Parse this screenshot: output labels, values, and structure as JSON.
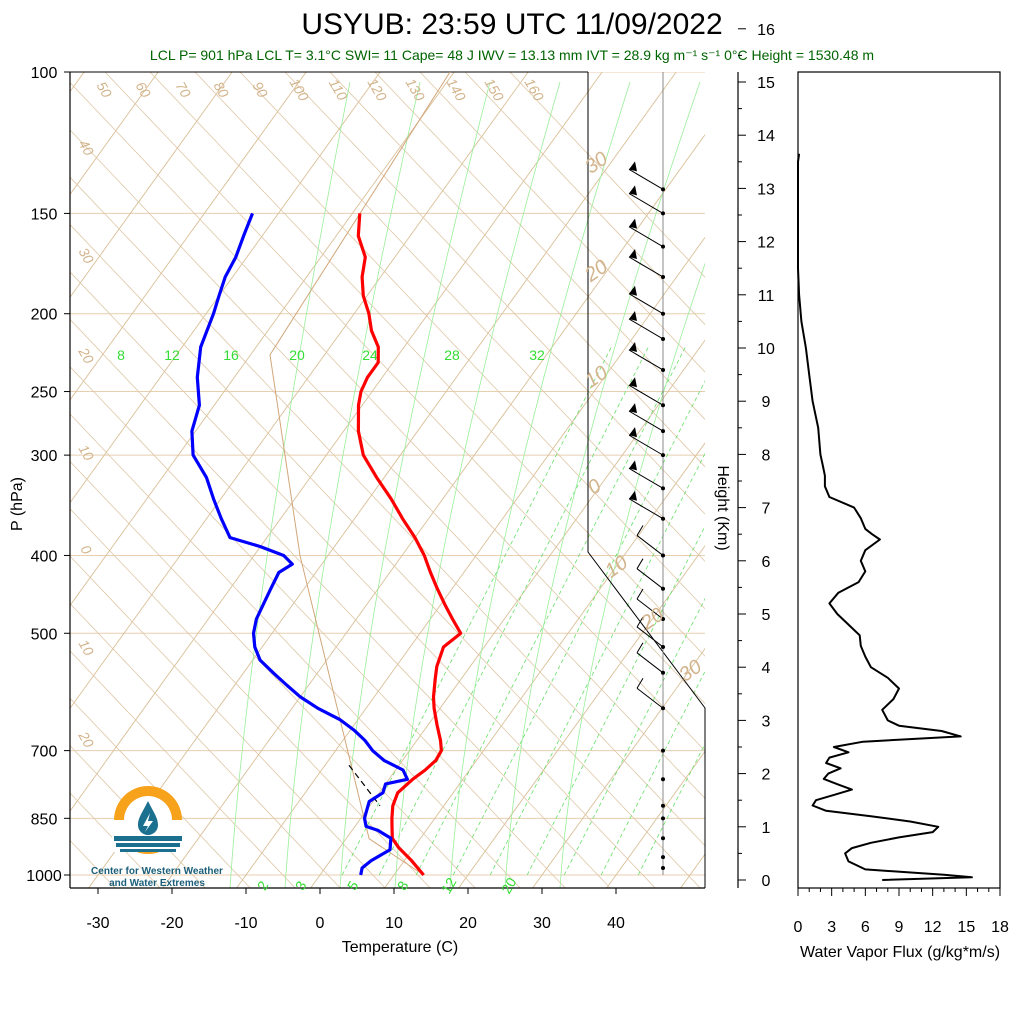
{
  "title": "USYUB: 23:59 UTC 11/09/2022",
  "subtitle": "LCL P= 901 hPa  LCL T= 3.1°C  SWI= 11  Cape= 48 J  IWV = 13.13 mm  IVT = 28.9 kg m⁻¹ s⁻¹  0°C Height = 1530.48 m",
  "logo": {
    "line1": "Center for Western Weather",
    "line2": "and Water Extremes",
    "colors": {
      "sun": "#f7a21b",
      "drop": "#1b6f8f"
    }
  },
  "chart_data": [
    {
      "type": "line",
      "name": "skew-t",
      "xlabel": "Temperature (C)",
      "ylabel": "P (hPa)",
      "xlim": [
        -35,
        50
      ],
      "ylim": [
        1000,
        100
      ],
      "x_ticks": [
        "-30",
        "-20",
        "-10",
        "0",
        "10",
        "20",
        "30",
        "40"
      ],
      "y_ticks": [
        "100",
        "150",
        "200",
        "250",
        "300",
        "400",
        "500",
        "700",
        "850",
        "1000"
      ],
      "isotherm_labels": [
        "50",
        "60",
        "70",
        "80",
        "90",
        "100",
        "110",
        "120",
        "130",
        "140",
        "150",
        "160",
        "40",
        "30",
        "20",
        "10",
        "0",
        "10",
        "20"
      ],
      "mixing_ratio_labels_top": [
        "8",
        "12",
        "16",
        "20",
        "24",
        "28",
        "32"
      ],
      "mixing_ratio_labels_bottom": [
        "2",
        "3",
        "5",
        "8",
        "12",
        "20"
      ],
      "dry_adiabat_labels": [
        "30",
        "20",
        "10",
        "0",
        "10",
        "20",
        "30"
      ],
      "colors": {
        "temperature": "#ff0000",
        "dewpoint": "#0000ff",
        "isotherm": "#d2b48c",
        "mixing": "#33dd33"
      },
      "series": [
        {
          "name": "",
          "color": "#ff0000",
          "p": [
            1000,
            960,
            925,
            900,
            870,
            850,
            820,
            790,
            760,
            740,
            720,
            700,
            680,
            650,
            620,
            600,
            570,
            550,
            520,
            500,
            480,
            460,
            440,
            420,
            400,
            380,
            360,
            340,
            320,
            300,
            280,
            260,
            250,
            240,
            230,
            220,
            210,
            200,
            190,
            180,
            170,
            160,
            150
          ],
          "t": [
            14.0,
            11.0,
            8.0,
            6.2,
            5.0,
            4.2,
            3.1,
            2.5,
            3.2,
            4.0,
            4.5,
            4.3,
            3.2,
            1.2,
            -0.8,
            -2.0,
            -3.5,
            -4.5,
            -5.5,
            -4.5,
            -7.0,
            -9.5,
            -12.0,
            -14.5,
            -17.0,
            -20.0,
            -23.5,
            -27.0,
            -31.0,
            -35.0,
            -38.0,
            -40.5,
            -41.5,
            -42.0,
            -42.0,
            -43.5,
            -46.0,
            -48.0,
            -50.5,
            -52.5,
            -54.0,
            -57.0,
            -59.0
          ]
        },
        {
          "name": "",
          "color": "#0000ff",
          "p": [
            1000,
            980,
            960,
            930,
            900,
            880,
            870,
            850,
            830,
            810,
            790,
            770,
            760,
            740,
            720,
            700,
            680,
            660,
            640,
            620,
            600,
            580,
            560,
            540,
            520,
            500,
            480,
            460,
            440,
            420,
            410,
            400,
            390,
            380,
            360,
            340,
            320,
            300,
            280,
            260,
            240,
            220,
            200,
            190,
            180,
            170,
            160,
            150
          ],
          "t": [
            5.5,
            5.0,
            5.5,
            7.0,
            6.0,
            3.5,
            1.5,
            0.5,
            0.0,
            -0.5,
            0.5,
            0.0,
            2.5,
            1.0,
            -2.5,
            -5.0,
            -7.0,
            -9.5,
            -12.5,
            -16.5,
            -20.0,
            -23.0,
            -26.0,
            -29.0,
            -31.0,
            -32.5,
            -33.5,
            -34.0,
            -34.5,
            -35.0,
            -34.0,
            -36.0,
            -40.0,
            -45.0,
            -48.0,
            -51.0,
            -54.0,
            -58.0,
            -60.5,
            -62.0,
            -65.0,
            -67.5,
            -69.0,
            -70.0,
            -71.0,
            -71.5,
            -72.5,
            -73.5
          ]
        }
      ]
    },
    {
      "type": "line",
      "name": "water-vapor-flux",
      "xlabel": "Water Vapor Flux (g/kg*m/s)",
      "ylabel": "Height (Km)",
      "xlim": [
        0,
        18
      ],
      "ylim": [
        -0.3,
        16.5
      ],
      "x_ticks": [
        "0",
        "3",
        "6",
        "9",
        "12",
        "15",
        "18"
      ],
      "y_ticks": [
        "0",
        "1",
        "2",
        "3",
        "4",
        "5",
        "6",
        "7",
        "8",
        "9",
        "10",
        "11",
        "12",
        "13",
        "14",
        "15",
        "16"
      ],
      "series": [
        {
          "name": "",
          "color": "#000000",
          "h": [
            0.0,
            0.05,
            0.1,
            0.2,
            0.35,
            0.5,
            0.6,
            0.7,
            0.8,
            0.9,
            1.0,
            1.1,
            1.2,
            1.3,
            1.4,
            1.5,
            1.6,
            1.7,
            1.8,
            1.9,
            2.0,
            2.1,
            2.2,
            2.3,
            2.4,
            2.5,
            2.6,
            2.7,
            2.8,
            2.9,
            3.0,
            3.2,
            3.4,
            3.6,
            3.8,
            4.0,
            4.2,
            4.4,
            4.6,
            4.8,
            5.0,
            5.2,
            5.4,
            5.6,
            5.8,
            6.0,
            6.2,
            6.4,
            6.5,
            6.6,
            6.8,
            7.0,
            7.2,
            7.4,
            7.6,
            7.8,
            8.0,
            8.5,
            9.0,
            9.5,
            10.0,
            10.5,
            11.0,
            11.5,
            12.0,
            12.5,
            13.0,
            13.5,
            13.65
          ],
          "v": [
            7.5,
            15.5,
            13.0,
            6.0,
            4.5,
            4.2,
            4.8,
            6.5,
            9.0,
            12.0,
            12.5,
            10.0,
            6.5,
            2.5,
            1.3,
            1.6,
            3.2,
            4.8,
            3.5,
            2.3,
            2.7,
            3.8,
            2.5,
            2.8,
            4.5,
            3.2,
            5.8,
            14.5,
            12.8,
            9.0,
            8.0,
            7.5,
            8.5,
            9.0,
            8.0,
            6.5,
            6.0,
            5.6,
            5.5,
            4.5,
            3.5,
            2.8,
            3.6,
            5.4,
            6.0,
            5.6,
            6.0,
            7.3,
            6.6,
            6.0,
            5.6,
            5.0,
            2.8,
            2.4,
            2.4,
            2.2,
            2.0,
            1.8,
            1.3,
            1.0,
            0.7,
            0.3,
            0.1,
            0.0,
            0.0,
            0.0,
            0.0,
            0.0,
            0.1
          ]
        }
      ]
    }
  ]
}
